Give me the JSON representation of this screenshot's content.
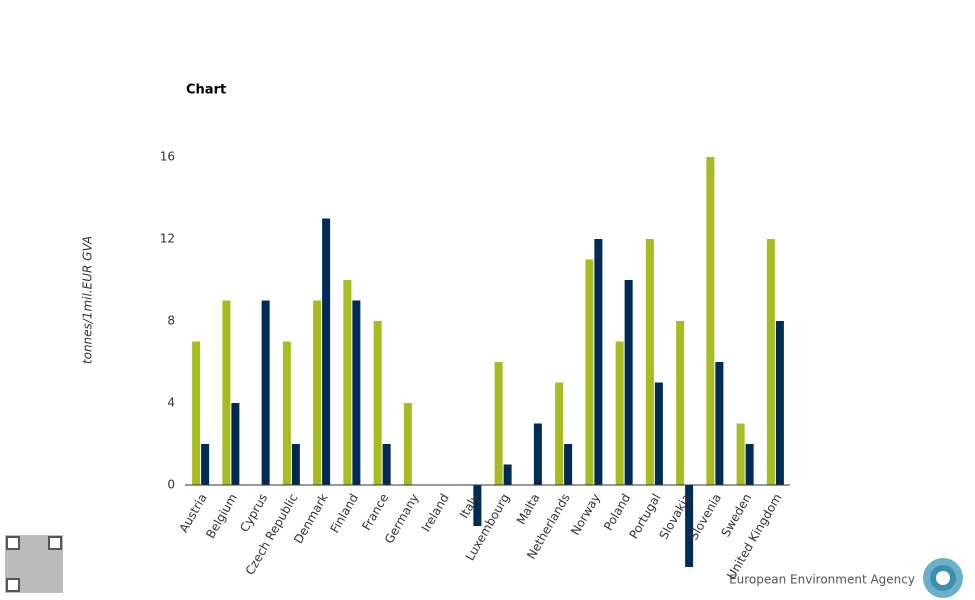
{
  "chart_data": {
    "type": "bar",
    "title": "Chart",
    "y_label": "tonnes/1mil.EUR GVA",
    "categories": [
      "Austria",
      "Belgium",
      "Cyprus",
      "Czech Republic",
      "Denmark",
      "Finland",
      "France",
      "Germany",
      "Ireland",
      "Italy",
      "Luxembourg",
      "Malta",
      "Netherlands",
      "Norway",
      "Poland",
      "Portugal",
      "Slovakia",
      "Slovenia",
      "Sweden",
      "United Kingdom"
    ],
    "series": [
      {
        "color": "#a8bb22",
        "values": [
          7,
          9,
          null,
          7,
          9,
          10,
          8,
          4,
          null,
          null,
          6,
          null,
          5,
          11,
          7,
          12,
          8,
          16,
          3,
          12
        ]
      },
      {
        "color": "#002b55",
        "values": [
          2,
          4,
          9,
          2,
          13,
          9,
          2,
          null,
          null,
          -2,
          1,
          3,
          2,
          12,
          10,
          5,
          -4,
          6,
          2,
          8
        ]
      }
    ],
    "ylim": [
      -4,
      17
    ],
    "yticks": [
      0,
      4,
      8,
      12,
      16
    ],
    "grid": false
  },
  "footer": {
    "agency": "European Environment Agency"
  }
}
